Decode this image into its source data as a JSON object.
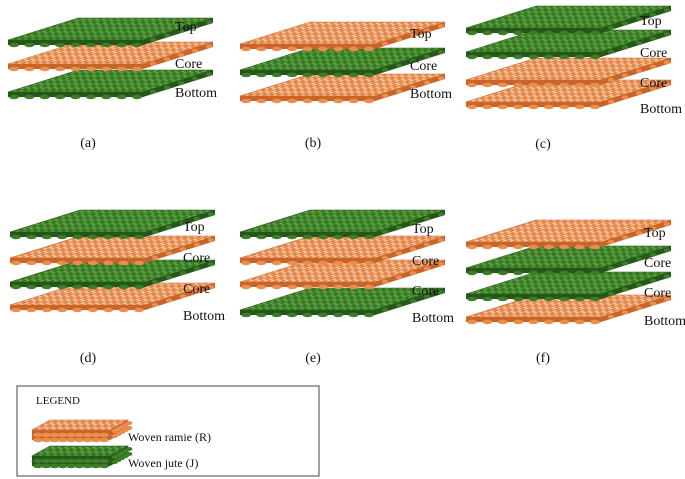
{
  "materials": {
    "R": {
      "name": "Woven ramie",
      "base": "#ea8e4e",
      "dark": "#c9652a",
      "light": "#f7c9a6"
    },
    "J": {
      "name": "Woven jute",
      "base": "#3c7e26",
      "dark": "#25561a",
      "light": "#5fa843"
    }
  },
  "panels": [
    {
      "caption": "(a)",
      "layers": [
        {
          "label": "Top",
          "material": "J"
        },
        {
          "label": "Core",
          "material": "R"
        },
        {
          "label": "Bottom",
          "material": "J"
        }
      ]
    },
    {
      "caption": "(b)",
      "layers": [
        {
          "label": "Top",
          "material": "R"
        },
        {
          "label": "Core",
          "material": "J"
        },
        {
          "label": "Bottom",
          "material": "R"
        }
      ]
    },
    {
      "caption": "(c)",
      "layers": [
        {
          "label": "Top",
          "material": "J"
        },
        {
          "label": "Core",
          "material": "J"
        },
        {
          "label": "Core",
          "material": "R"
        },
        {
          "label": "Bottom",
          "material": "R"
        }
      ]
    },
    {
      "caption": "(d)",
      "layers": [
        {
          "label": "Top",
          "material": "J"
        },
        {
          "label": "Core",
          "material": "R"
        },
        {
          "label": "Core",
          "material": "J"
        },
        {
          "label": "Bottom",
          "material": "R"
        }
      ]
    },
    {
      "caption": "(e)",
      "layers": [
        {
          "label": "Top",
          "material": "J"
        },
        {
          "label": "Core",
          "material": "R"
        },
        {
          "label": "Core",
          "material": "R"
        },
        {
          "label": "Bottom",
          "material": "J"
        }
      ]
    },
    {
      "caption": "(f)",
      "layers": [
        {
          "label": "Top",
          "material": "R"
        },
        {
          "label": "Core",
          "material": "J"
        },
        {
          "label": "Core",
          "material": "J"
        },
        {
          "label": "Bottom",
          "material": "R"
        }
      ]
    }
  ],
  "legend": {
    "title": "LEGEND",
    "items": [
      {
        "material": "R",
        "label": "Woven  ramie (R)"
      },
      {
        "material": "J",
        "label": "Woven  jute (J)"
      }
    ]
  }
}
